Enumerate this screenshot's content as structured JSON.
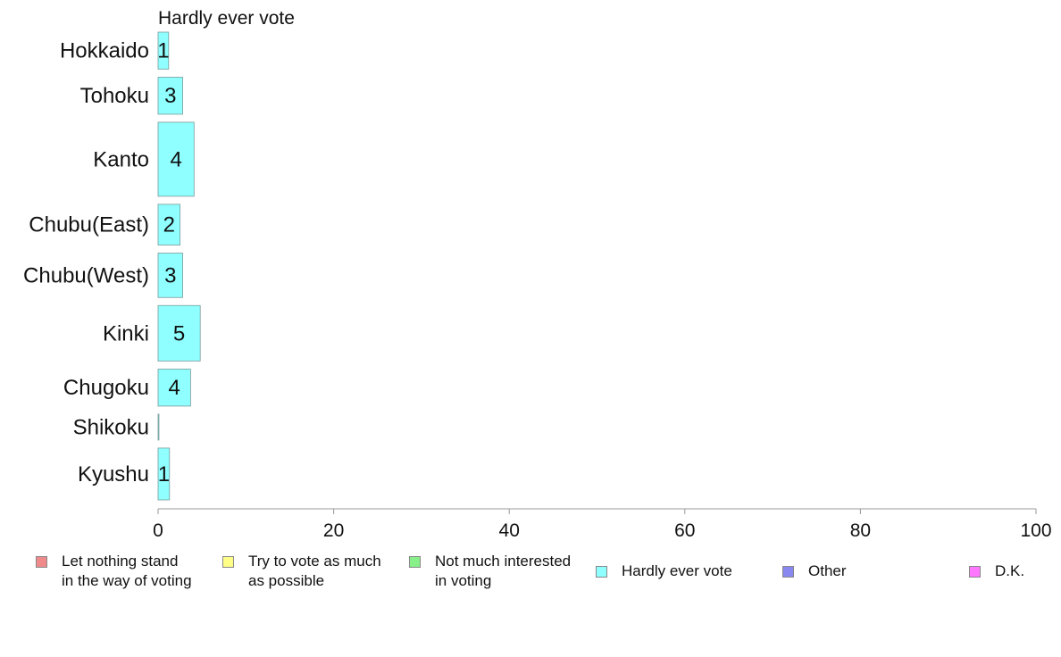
{
  "chart_data": {
    "type": "bar",
    "orientation": "horizontal",
    "title": "Hardly ever vote",
    "xlabel": "",
    "ylabel": "",
    "xlim": [
      0,
      100
    ],
    "xticks": [
      0,
      20,
      40,
      60,
      80,
      100
    ],
    "grid": false,
    "legend_position": "bottom",
    "categories": [
      "Hokkaido",
      "Tohoku",
      "Kanto",
      "Chubu(East)",
      "Chubu(West)",
      "Kinki",
      "Chugoku",
      "Shikoku",
      "Kyushu"
    ],
    "series": [
      {
        "name": "Hardly ever vote",
        "values": [
          1.2,
          2.8,
          4.1,
          2.5,
          2.8,
          4.8,
          3.7,
          0.1,
          1.3
        ],
        "data_labels": [
          "1",
          "3",
          "4",
          "2",
          "3",
          "5",
          "4",
          "",
          "1"
        ],
        "color": "#8fffff"
      }
    ],
    "relative_bar_widths": [
      1,
      1,
      2,
      1.1,
      1.2,
      1.5,
      1,
      0.7,
      1.4
    ],
    "legend": [
      {
        "label": "Let nothing stand\nin the way of voting",
        "color": "#f08a8a"
      },
      {
        "label": "Try to vote as much\nas possible",
        "color": "#ffff88"
      },
      {
        "label": "Not much interested\nin voting",
        "color": "#88f088"
      },
      {
        "label": "Hardly ever vote",
        "color": "#8fffff"
      },
      {
        "label": "Other",
        "color": "#8888f0"
      },
      {
        "label": "D.K.",
        "color": "#ff77ff"
      }
    ]
  }
}
